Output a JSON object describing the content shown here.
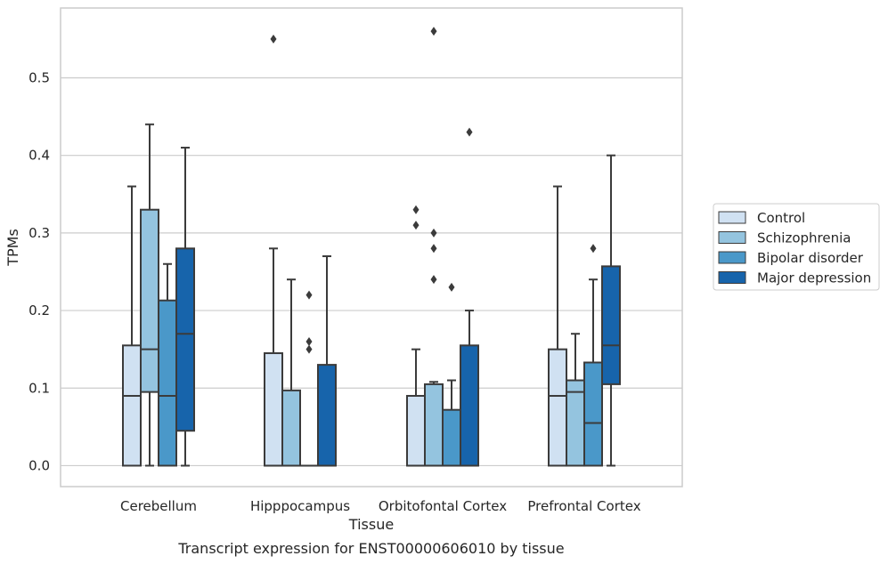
{
  "chart_data": {
    "type": "boxplot",
    "caption": "Transcript expression for ENST00000606010 by tissue",
    "xlabel": "Tissue",
    "ylabel": "TPMs",
    "ylim": [
      -0.027,
      0.59
    ],
    "yticks": [
      0.0,
      0.1,
      0.2,
      0.3,
      0.4,
      0.5
    ],
    "ytick_labels": [
      "0.0",
      "0.1",
      "0.2",
      "0.3",
      "0.4",
      "0.5"
    ],
    "grid": "horizontal",
    "legend_placement": "right",
    "categories": [
      "Cerebellum",
      "Hipppocampus",
      "Orbitofontal Cortex",
      "Prefrontal Cortex"
    ],
    "series": [
      {
        "name": "Control",
        "color": "#d0e1f2",
        "boxes": [
          {
            "whisker_low": 0.0,
            "q1": 0.0,
            "median": 0.09,
            "q3": 0.155,
            "whisker_high": 0.36,
            "outliers": []
          },
          {
            "whisker_low": 0.0,
            "q1": 0.0,
            "median": 0.0,
            "q3": 0.145,
            "whisker_high": 0.28,
            "outliers": [
              0.55
            ]
          },
          {
            "whisker_low": 0.0,
            "q1": 0.0,
            "median": 0.0,
            "q3": 0.09,
            "whisker_high": 0.15,
            "outliers": []
          },
          {
            "whisker_low": 0.0,
            "q1": 0.0,
            "median": 0.09,
            "q3": 0.15,
            "whisker_high": 0.36,
            "outliers": []
          }
        ]
      },
      {
        "name": "Schizophrenia",
        "color": "#94c4df",
        "boxes": [
          {
            "whisker_low": 0.0,
            "q1": 0.095,
            "median": 0.15,
            "q3": 0.33,
            "whisker_high": 0.44,
            "outliers": []
          },
          {
            "whisker_low": 0.0,
            "q1": 0.0,
            "median": 0.0,
            "q3": 0.097,
            "whisker_high": 0.24,
            "outliers": []
          },
          {
            "whisker_low": 0.0,
            "q1": 0.0,
            "median": 0.0,
            "q3": 0.105,
            "whisker_high": 0.108,
            "outliers": [
              0.24,
              0.28,
              0.3,
              0.56
            ]
          },
          {
            "whisker_low": 0.0,
            "q1": 0.0,
            "median": 0.095,
            "q3": 0.11,
            "whisker_high": 0.17,
            "outliers": []
          }
        ]
      },
      {
        "name": "Bipolar disorder",
        "color": "#4a98c9",
        "boxes": [
          {
            "whisker_low": 0.0,
            "q1": 0.0,
            "median": 0.09,
            "q3": 0.213,
            "whisker_high": 0.26,
            "outliers": []
          },
          {
            "whisker_low": 0.0,
            "q1": 0.0,
            "median": 0.0,
            "q3": 0.0,
            "whisker_high": 0.0,
            "outliers": [
              0.15,
              0.16,
              0.22
            ]
          },
          {
            "whisker_low": 0.0,
            "q1": 0.0,
            "median": 0.0,
            "q3": 0.072,
            "whisker_high": 0.11,
            "outliers": [
              0.23
            ]
          },
          {
            "whisker_low": 0.0,
            "q1": 0.0,
            "median": 0.055,
            "q3": 0.133,
            "whisker_high": 0.24,
            "outliers": [
              0.28
            ]
          }
        ]
      },
      {
        "name": "Major depression",
        "color": "#1764ab",
        "boxes": [
          {
            "whisker_low": 0.0,
            "q1": 0.045,
            "median": 0.17,
            "q3": 0.28,
            "whisker_high": 0.41,
            "outliers": []
          },
          {
            "whisker_low": 0.0,
            "q1": 0.0,
            "median": 0.0,
            "q3": 0.13,
            "whisker_high": 0.27,
            "outliers": []
          },
          {
            "whisker_low": 0.0,
            "q1": 0.0,
            "median": 0.0,
            "q3": 0.155,
            "whisker_high": 0.2,
            "outliers": [
              0.43
            ]
          },
          {
            "whisker_low": 0.0,
            "q1": 0.105,
            "median": 0.155,
            "q3": 0.257,
            "whisker_high": 0.4,
            "outliers": []
          }
        ]
      }
    ]
  },
  "extra_outliers": [
    {
      "category": 2,
      "x_offset_in_groups": 0,
      "values": [
        0.31,
        0.33
      ],
      "series": "Control"
    }
  ],
  "colors": {
    "frame": "#cccccc",
    "grid": "#cccccc",
    "box_edge": "#3b3b3b",
    "text": "#262626",
    "background": "#ffffff"
  }
}
